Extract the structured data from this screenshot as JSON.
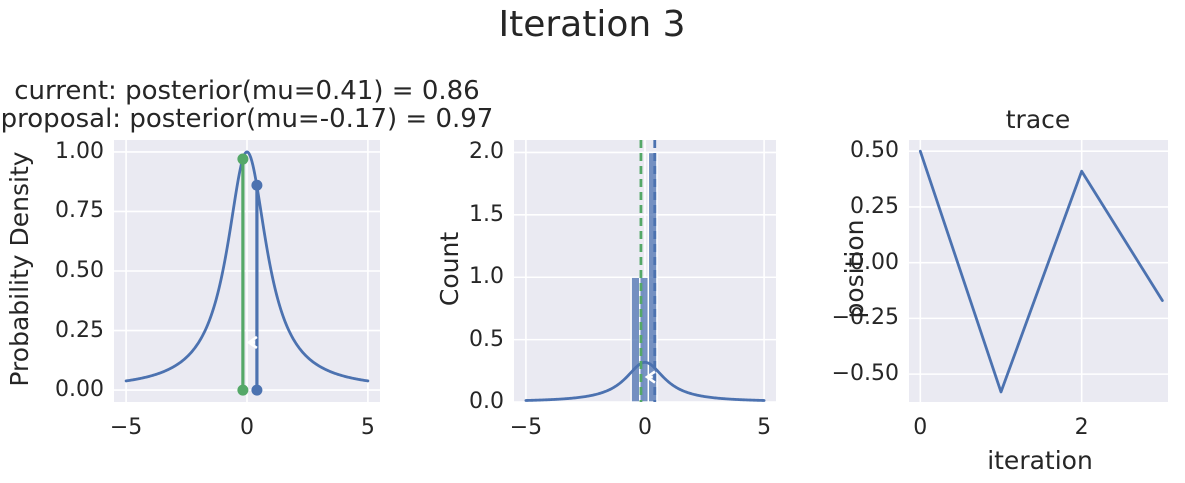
{
  "figure": {
    "suptitle": "Iteration 3"
  },
  "style": {
    "figure_bg": "#FFFFFF",
    "axes_bg": "#EAEAF2",
    "grid_color": "#FFFFFF",
    "text_color": "#262626",
    "blue": "#4C72B0",
    "green": "#55A868",
    "arrow_color": "#FFFFFF"
  },
  "chart_data": [
    {
      "id": "posterior",
      "type": "line",
      "title_lines": [
        "current: posterior(mu=0.41) = 0.86",
        "proposal: posterior(mu=-0.17) = 0.97"
      ],
      "ylabel": "Probability Density",
      "xlim": [
        -5.5,
        5.5
      ],
      "ylim": [
        -0.05,
        1.05
      ],
      "grid": true,
      "xticks": [
        {
          "v": -5,
          "label": "−5"
        },
        {
          "v": 0,
          "label": "0"
        },
        {
          "v": 5,
          "label": "5"
        }
      ],
      "yticks": [
        {
          "v": 1.0,
          "label": "1.00"
        },
        {
          "v": 0.75,
          "label": "0.75"
        },
        {
          "v": 0.5,
          "label": "0.50"
        },
        {
          "v": 0.25,
          "label": "0.25"
        },
        {
          "v": 0.0,
          "label": "0.00"
        }
      ],
      "curve": {
        "name": "posterior-density-curve",
        "formula": "y = 1/(1+x^2)",
        "peak": 1.0,
        "x_range": [
          -5,
          5
        ],
        "color": "#4C72B0"
      },
      "stems": [
        {
          "name": "current",
          "mu": 0.41,
          "posterior": 0.86,
          "color": "#4C72B0"
        },
        {
          "name": "proposal",
          "mu": -0.17,
          "posterior": 0.97,
          "color": "#55A868"
        }
      ],
      "arrow": {
        "from_x": 0.41,
        "to_x": -0.17,
        "y": 0.2,
        "color": "#FFFFFF"
      }
    },
    {
      "id": "samples-histogram",
      "type": "bar",
      "ylabel": "Count",
      "xlim": [
        -5.5,
        5.5
      ],
      "ylim": [
        0,
        2.1
      ],
      "grid": true,
      "xticks": [
        {
          "v": -5,
          "label": "−5"
        },
        {
          "v": 0,
          "label": "0"
        },
        {
          "v": 5,
          "label": "5"
        }
      ],
      "yticks": [
        {
          "v": 2.0,
          "label": "2.0"
        },
        {
          "v": 1.5,
          "label": "1.5"
        },
        {
          "v": 1.0,
          "label": "1.0"
        },
        {
          "v": 0.5,
          "label": "0.5"
        },
        {
          "v": 0.0,
          "label": "0.0"
        }
      ],
      "bin_edges": [
        -0.58,
        -0.22,
        0.14,
        0.5
      ],
      "bars": [
        {
          "x0": -0.58,
          "x1": -0.22,
          "count": 1
        },
        {
          "x0": -0.22,
          "x1": 0.14,
          "count": 1
        },
        {
          "x0": 0.14,
          "x1": 0.5,
          "count": 2
        }
      ],
      "bar_color": "#4C72B0",
      "bar_alpha": 0.75,
      "curve": {
        "name": "posterior-pdf-curve",
        "formula": "y = 0.318/(1+x^2)",
        "peak": 0.318,
        "x_range": [
          -5,
          5
        ],
        "color": "#4C72B0"
      },
      "vlines": [
        {
          "name": "mu-current",
          "x": 0.41,
          "color": "#4C72B0",
          "style": "dashed"
        },
        {
          "name": "mu-proposal",
          "x": -0.17,
          "color": "#55A868",
          "style": "dashed"
        }
      ],
      "arrow": {
        "from_x": 0.41,
        "to_x": -0.17,
        "y": 0.2,
        "color": "#FFFFFF"
      }
    },
    {
      "id": "trace",
      "type": "line",
      "title": "trace",
      "xlabel": "iteration",
      "ylabel": "position",
      "x": [
        0,
        1,
        2,
        3
      ],
      "y": [
        0.5,
        -0.58,
        0.41,
        -0.17
      ],
      "line_color": "#4C72B0",
      "xlim": [
        -0.14,
        3.07
      ],
      "ylim": [
        -0.625,
        0.55
      ],
      "grid": true,
      "xticks": [
        {
          "v": 0,
          "label": "0"
        },
        {
          "v": 2,
          "label": "2"
        }
      ],
      "yticks": [
        {
          "v": 0.5,
          "label": "0.50"
        },
        {
          "v": 0.25,
          "label": "0.25"
        },
        {
          "v": 0.0,
          "label": "0.00"
        },
        {
          "v": -0.25,
          "label": "−0.25"
        },
        {
          "v": -0.5,
          "label": "−0.50"
        }
      ]
    }
  ]
}
